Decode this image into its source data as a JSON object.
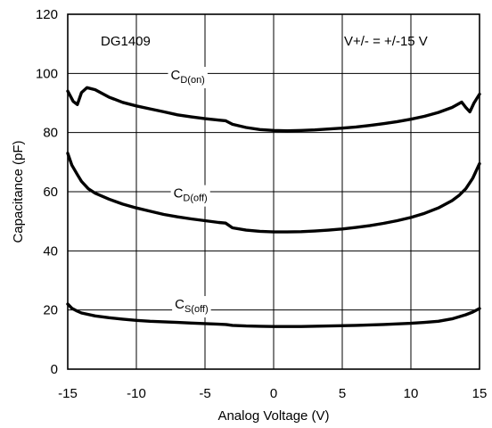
{
  "chart_data": {
    "type": "line",
    "xlabel": "Analog Voltage (V)",
    "ylabel": "Capacitance (pF)",
    "xlim": [
      -15,
      15
    ],
    "ylim": [
      0,
      120
    ],
    "x_ticks": [
      "-15",
      "-10",
      "-5",
      "0",
      "5",
      "10",
      "15"
    ],
    "y_ticks": [
      "0",
      "20",
      "40",
      "60",
      "80",
      "100",
      "120"
    ],
    "grid": true,
    "annotations": {
      "device": "DG1409",
      "supply": "V+/- = +/-15 V"
    },
    "series": [
      {
        "name": "CD(on)",
        "label_main": "C",
        "label_sub": "D(on)",
        "points": [
          [
            -15,
            94
          ],
          [
            -14.6,
            90.5
          ],
          [
            -14.3,
            89.5
          ],
          [
            -14,
            93.5
          ],
          [
            -13.6,
            95.2
          ],
          [
            -13,
            94.5
          ],
          [
            -12,
            92
          ],
          [
            -11,
            90.2
          ],
          [
            -10,
            89
          ],
          [
            -9,
            88
          ],
          [
            -8,
            87
          ],
          [
            -7,
            86
          ],
          [
            -6,
            85.3
          ],
          [
            -5,
            84.7
          ],
          [
            -4,
            84.2
          ],
          [
            -3.5,
            84
          ],
          [
            -3,
            82.8
          ],
          [
            -2,
            81.7
          ],
          [
            -1,
            81
          ],
          [
            0,
            80.7
          ],
          [
            1,
            80.6
          ],
          [
            2,
            80.7
          ],
          [
            3,
            80.9
          ],
          [
            4,
            81.2
          ],
          [
            5,
            81.5
          ],
          [
            6,
            81.9
          ],
          [
            7,
            82.4
          ],
          [
            8,
            83
          ],
          [
            9,
            83.7
          ],
          [
            10,
            84.5
          ],
          [
            11,
            85.5
          ],
          [
            12,
            86.8
          ],
          [
            13,
            88.5
          ],
          [
            13.7,
            90.3
          ],
          [
            14,
            88.5
          ],
          [
            14.3,
            87
          ],
          [
            14.6,
            90
          ],
          [
            15,
            93
          ]
        ]
      },
      {
        "name": "CD(off)",
        "label_main": "C",
        "label_sub": "D(off)",
        "points": [
          [
            -15,
            73
          ],
          [
            -14.7,
            69
          ],
          [
            -14.3,
            65.8
          ],
          [
            -14,
            63.5
          ],
          [
            -13.5,
            61
          ],
          [
            -13,
            59.5
          ],
          [
            -12,
            57.5
          ],
          [
            -11,
            55.8
          ],
          [
            -10,
            54.5
          ],
          [
            -9,
            53.4
          ],
          [
            -8,
            52.3
          ],
          [
            -7,
            51.5
          ],
          [
            -6,
            50.8
          ],
          [
            -5,
            50.2
          ],
          [
            -4,
            49.6
          ],
          [
            -3.5,
            49.4
          ],
          [
            -3,
            47.8
          ],
          [
            -2,
            47
          ],
          [
            -1,
            46.6
          ],
          [
            0,
            46.4
          ],
          [
            1,
            46.4
          ],
          [
            2,
            46.5
          ],
          [
            3,
            46.7
          ],
          [
            4,
            47
          ],
          [
            5,
            47.4
          ],
          [
            6,
            47.9
          ],
          [
            7,
            48.5
          ],
          [
            8,
            49.3
          ],
          [
            9,
            50.2
          ],
          [
            10,
            51.3
          ],
          [
            11,
            52.7
          ],
          [
            12,
            54.5
          ],
          [
            13,
            57
          ],
          [
            13.5,
            58.7
          ],
          [
            14,
            61
          ],
          [
            14.5,
            64.5
          ],
          [
            15,
            69.5
          ]
        ]
      },
      {
        "name": "CS(off)",
        "label_main": "C",
        "label_sub": "S(off)",
        "points": [
          [
            -15,
            22
          ],
          [
            -14.7,
            20.6
          ],
          [
            -14.3,
            19.6
          ],
          [
            -14,
            19
          ],
          [
            -13,
            18
          ],
          [
            -12,
            17.4
          ],
          [
            -11,
            16.9
          ],
          [
            -10,
            16.5
          ],
          [
            -9,
            16.2
          ],
          [
            -8,
            16
          ],
          [
            -7,
            15.8
          ],
          [
            -6,
            15.6
          ],
          [
            -5,
            15.4
          ],
          [
            -4,
            15.2
          ],
          [
            -3.5,
            15.1
          ],
          [
            -3,
            14.8
          ],
          [
            -2,
            14.6
          ],
          [
            -1,
            14.5
          ],
          [
            0,
            14.4
          ],
          [
            2,
            14.4
          ],
          [
            4,
            14.6
          ],
          [
            6,
            14.8
          ],
          [
            8,
            15.1
          ],
          [
            10,
            15.5
          ],
          [
            11,
            15.8
          ],
          [
            12,
            16.2
          ],
          [
            13,
            17
          ],
          [
            14,
            18.4
          ],
          [
            14.5,
            19.3
          ],
          [
            15,
            20.5
          ]
        ]
      }
    ]
  }
}
